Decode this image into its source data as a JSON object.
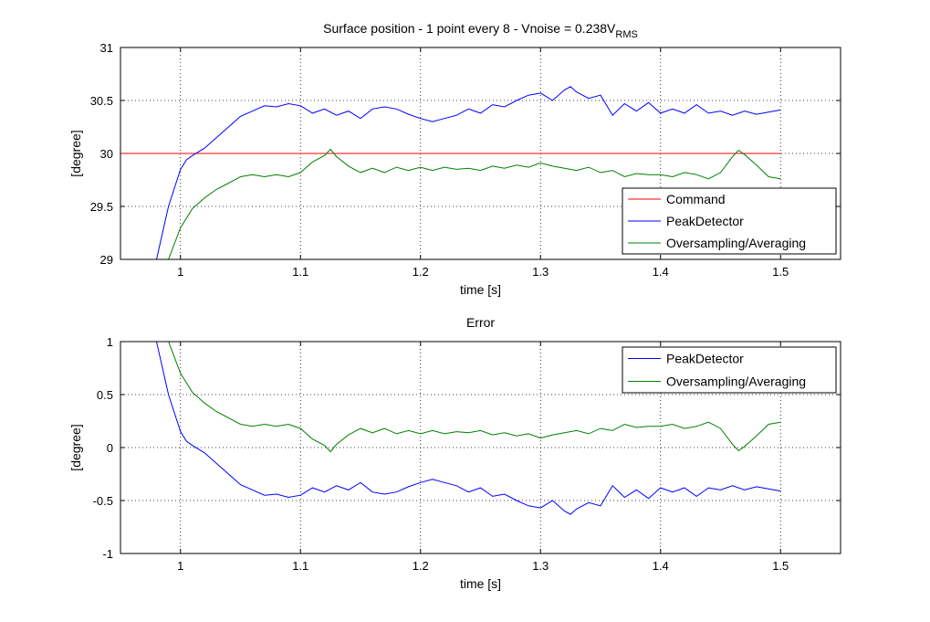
{
  "chart_data": [
    {
      "type": "line",
      "title": "Surface position - 1 point every 8 - Vnoise = 0.238V",
      "title_subscript": "RMS",
      "xlabel": "time [s]",
      "ylabel": "[degree]",
      "xlim": [
        0.95,
        1.55
      ],
      "ylim": [
        29,
        31
      ],
      "xticks": [
        "1",
        "1.1",
        "1.2",
        "1.3",
        "1.4",
        "1.5"
      ],
      "yticks": [
        "29",
        "29.5",
        "30",
        "30.5",
        "31"
      ],
      "grid": true,
      "legend_position": "bottom-right",
      "series": [
        {
          "name": "Command",
          "color": "#ff0000",
          "x": [
            0.95,
            1.5
          ],
          "y": [
            30,
            30
          ]
        },
        {
          "name": "PeakDetector",
          "color": "#0000ff",
          "x": [
            0.98,
            0.99,
            1.0,
            1.005,
            1.01,
            1.02,
            1.03,
            1.04,
            1.05,
            1.06,
            1.07,
            1.08,
            1.09,
            1.1,
            1.11,
            1.12,
            1.13,
            1.14,
            1.15,
            1.16,
            1.17,
            1.18,
            1.19,
            1.2,
            1.21,
            1.22,
            1.23,
            1.24,
            1.25,
            1.26,
            1.27,
            1.28,
            1.29,
            1.3,
            1.31,
            1.32,
            1.325,
            1.33,
            1.34,
            1.35,
            1.36,
            1.37,
            1.38,
            1.39,
            1.4,
            1.41,
            1.42,
            1.43,
            1.44,
            1.45,
            1.46,
            1.47,
            1.48,
            1.49,
            1.5
          ],
          "y": [
            29.0,
            29.5,
            29.85,
            29.94,
            29.98,
            30.05,
            30.15,
            30.25,
            30.35,
            30.4,
            30.45,
            30.44,
            30.47,
            30.45,
            30.38,
            30.42,
            30.36,
            30.4,
            30.33,
            30.42,
            30.44,
            30.42,
            30.37,
            30.33,
            30.3,
            30.33,
            30.36,
            30.42,
            30.38,
            30.46,
            30.44,
            30.5,
            30.55,
            30.57,
            30.5,
            30.6,
            30.63,
            30.58,
            30.52,
            30.55,
            30.36,
            30.47,
            30.4,
            30.48,
            30.38,
            30.42,
            30.38,
            30.46,
            30.38,
            30.4,
            30.36,
            30.4,
            30.37,
            30.39,
            30.41
          ]
        },
        {
          "name": "Oversampling/Averaging",
          "color": "#008000",
          "x": [
            0.99,
            1.0,
            1.01,
            1.02,
            1.03,
            1.04,
            1.05,
            1.06,
            1.07,
            1.08,
            1.09,
            1.1,
            1.11,
            1.12,
            1.125,
            1.13,
            1.14,
            1.15,
            1.16,
            1.17,
            1.18,
            1.19,
            1.2,
            1.21,
            1.22,
            1.23,
            1.24,
            1.25,
            1.26,
            1.27,
            1.28,
            1.29,
            1.3,
            1.31,
            1.32,
            1.33,
            1.34,
            1.35,
            1.36,
            1.37,
            1.38,
            1.39,
            1.4,
            1.41,
            1.42,
            1.43,
            1.44,
            1.45,
            1.46,
            1.465,
            1.47,
            1.48,
            1.49,
            1.5
          ],
          "y": [
            29.0,
            29.3,
            29.48,
            29.58,
            29.66,
            29.72,
            29.78,
            29.8,
            29.78,
            29.8,
            29.78,
            29.82,
            29.92,
            29.98,
            30.04,
            29.97,
            29.88,
            29.82,
            29.86,
            29.82,
            29.87,
            29.84,
            29.87,
            29.84,
            29.87,
            29.85,
            29.86,
            29.84,
            29.88,
            29.86,
            29.89,
            29.87,
            29.91,
            29.88,
            29.86,
            29.84,
            29.87,
            29.82,
            29.84,
            29.78,
            29.81,
            29.8,
            29.8,
            29.78,
            29.82,
            29.8,
            29.76,
            29.82,
            29.97,
            30.03,
            29.99,
            29.89,
            29.78,
            29.76
          ]
        }
      ]
    },
    {
      "type": "line",
      "title": "Error",
      "xlabel": "time [s]",
      "ylabel": "[degree]",
      "xlim": [
        0.95,
        1.55
      ],
      "ylim": [
        -1,
        1
      ],
      "xticks": [
        "1",
        "1.1",
        "1.2",
        "1.3",
        "1.4",
        "1.5"
      ],
      "yticks": [
        "-1",
        "-0.5",
        "0",
        "0.5",
        "1"
      ],
      "grid": true,
      "legend_position": "top-right",
      "series": [
        {
          "name": "PeakDetector",
          "color": "#0000ff",
          "x": [
            0.98,
            0.99,
            1.0,
            1.005,
            1.01,
            1.02,
            1.03,
            1.04,
            1.05,
            1.06,
            1.07,
            1.08,
            1.09,
            1.1,
            1.11,
            1.12,
            1.13,
            1.14,
            1.15,
            1.16,
            1.17,
            1.18,
            1.19,
            1.2,
            1.21,
            1.22,
            1.23,
            1.24,
            1.25,
            1.26,
            1.27,
            1.28,
            1.29,
            1.3,
            1.31,
            1.32,
            1.325,
            1.33,
            1.34,
            1.35,
            1.36,
            1.37,
            1.38,
            1.39,
            1.4,
            1.41,
            1.42,
            1.43,
            1.44,
            1.45,
            1.46,
            1.47,
            1.48,
            1.49,
            1.5
          ],
          "y": [
            1.0,
            0.5,
            0.15,
            0.06,
            0.02,
            -0.05,
            -0.15,
            -0.25,
            -0.35,
            -0.4,
            -0.45,
            -0.44,
            -0.47,
            -0.45,
            -0.38,
            -0.42,
            -0.36,
            -0.4,
            -0.33,
            -0.42,
            -0.44,
            -0.42,
            -0.37,
            -0.33,
            -0.3,
            -0.33,
            -0.36,
            -0.42,
            -0.38,
            -0.46,
            -0.44,
            -0.5,
            -0.55,
            -0.57,
            -0.5,
            -0.6,
            -0.63,
            -0.58,
            -0.52,
            -0.55,
            -0.36,
            -0.47,
            -0.4,
            -0.48,
            -0.38,
            -0.42,
            -0.38,
            -0.46,
            -0.38,
            -0.4,
            -0.36,
            -0.4,
            -0.37,
            -0.39,
            -0.41
          ]
        },
        {
          "name": "Oversampling/Averaging",
          "color": "#008000",
          "x": [
            0.99,
            1.0,
            1.01,
            1.02,
            1.03,
            1.04,
            1.05,
            1.06,
            1.07,
            1.08,
            1.09,
            1.1,
            1.11,
            1.12,
            1.125,
            1.13,
            1.14,
            1.15,
            1.16,
            1.17,
            1.18,
            1.19,
            1.2,
            1.21,
            1.22,
            1.23,
            1.24,
            1.25,
            1.26,
            1.27,
            1.28,
            1.29,
            1.3,
            1.31,
            1.32,
            1.33,
            1.34,
            1.35,
            1.36,
            1.37,
            1.38,
            1.39,
            1.4,
            1.41,
            1.42,
            1.43,
            1.44,
            1.45,
            1.46,
            1.465,
            1.47,
            1.48,
            1.49,
            1.5
          ],
          "y": [
            1.0,
            0.7,
            0.52,
            0.42,
            0.34,
            0.28,
            0.22,
            0.2,
            0.22,
            0.2,
            0.22,
            0.18,
            0.08,
            0.02,
            -0.04,
            0.03,
            0.12,
            0.18,
            0.14,
            0.18,
            0.13,
            0.16,
            0.13,
            0.16,
            0.13,
            0.15,
            0.14,
            0.16,
            0.12,
            0.14,
            0.11,
            0.13,
            0.09,
            0.12,
            0.14,
            0.16,
            0.13,
            0.18,
            0.16,
            0.22,
            0.19,
            0.2,
            0.2,
            0.22,
            0.18,
            0.2,
            0.24,
            0.18,
            0.03,
            -0.03,
            0.01,
            0.11,
            0.22,
            0.24
          ]
        }
      ]
    }
  ]
}
